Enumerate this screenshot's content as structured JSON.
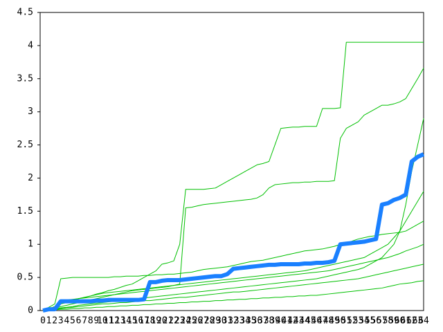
{
  "chart_data": {
    "type": "line",
    "categories": [
      "0",
      "1",
      "2",
      "3",
      "4",
      "5",
      "6",
      "7",
      "8",
      "9",
      "10",
      "11",
      "12",
      "13",
      "14",
      "15",
      "16",
      "17",
      "18",
      "19",
      "20",
      "21",
      "22",
      "23",
      "24",
      "25",
      "26",
      "27",
      "28",
      "29",
      "30",
      "31",
      "32",
      "33",
      "34",
      "35",
      "36",
      "37",
      "38",
      "39",
      "40",
      "41",
      "42",
      "43",
      "44",
      "45",
      "46",
      "47",
      "48",
      "49",
      "50",
      "51",
      "52",
      "53",
      "54",
      "55",
      "56",
      "57",
      "58",
      "59",
      "60",
      "61",
      "62",
      "63",
      "64"
    ],
    "ylim": [
      0,
      4.5
    ],
    "yticks": [
      0,
      0.5,
      1,
      1.5,
      2,
      2.5,
      3,
      3.5,
      4,
      4.5
    ],
    "grid": false,
    "series": [
      {
        "color": "#00c000",
        "width": 1,
        "values": [
          0,
          0.02,
          0.05,
          0.1,
          0.12,
          0.15,
          0.18,
          0.2,
          0.22,
          0.25,
          0.27,
          0.3,
          0.32,
          0.35,
          0.38,
          0.4,
          0.45,
          0.5,
          0.55,
          0.6,
          0.7,
          0.72,
          0.75,
          1.0,
          1.83,
          1.83,
          1.83,
          1.83,
          1.84,
          1.85,
          1.9,
          1.95,
          2.0,
          2.05,
          2.1,
          2.15,
          2.2,
          2.22,
          2.25,
          2.5,
          2.75,
          2.76,
          2.77,
          2.77,
          2.78,
          2.78,
          2.78,
          3.05,
          3.05,
          3.05,
          3.06,
          4.05,
          4.05,
          4.05,
          4.05,
          4.05,
          4.05,
          4.05,
          4.05,
          4.05,
          4.05,
          4.05,
          4.05,
          4.05,
          4.05
        ]
      },
      {
        "color": "#00c000",
        "width": 1,
        "values": [
          0,
          0.01,
          0.03,
          0.06,
          0.08,
          0.1,
          0.12,
          0.14,
          0.16,
          0.18,
          0.2,
          0.22,
          0.24,
          0.26,
          0.28,
          0.3,
          0.31,
          0.32,
          0.33,
          0.34,
          0.35,
          0.36,
          0.38,
          0.4,
          1.55,
          1.56,
          1.58,
          1.6,
          1.61,
          1.62,
          1.63,
          1.64,
          1.65,
          1.66,
          1.67,
          1.68,
          1.7,
          1.75,
          1.85,
          1.9,
          1.91,
          1.92,
          1.93,
          1.93,
          1.94,
          1.94,
          1.95,
          1.95,
          1.95,
          1.96,
          2.6,
          2.75,
          2.8,
          2.85,
          2.95,
          3.0,
          3.05,
          3.1,
          3.1,
          3.12,
          3.15,
          3.2,
          3.35,
          3.5,
          3.66
        ]
      },
      {
        "color": "#00c000",
        "width": 1,
        "values": [
          0,
          0.01,
          0.02,
          0.04,
          0.05,
          0.06,
          0.08,
          0.09,
          0.1,
          0.11,
          0.12,
          0.13,
          0.14,
          0.15,
          0.16,
          0.17,
          0.18,
          0.19,
          0.2,
          0.21,
          0.22,
          0.23,
          0.24,
          0.25,
          0.26,
          0.27,
          0.28,
          0.29,
          0.3,
          0.31,
          0.32,
          0.33,
          0.34,
          0.35,
          0.36,
          0.37,
          0.38,
          0.39,
          0.4,
          0.41,
          0.42,
          0.43,
          0.44,
          0.45,
          0.46,
          0.47,
          0.48,
          0.5,
          0.52,
          0.54,
          0.56,
          0.58,
          0.6,
          0.62,
          0.65,
          0.7,
          0.75,
          0.8,
          0.9,
          1.0,
          1.2,
          1.6,
          2.1,
          2.5,
          2.9
        ]
      },
      {
        "color": "#00c000",
        "width": 1,
        "values": [
          0,
          0.05,
          0.1,
          0.48,
          0.49,
          0.5,
          0.5,
          0.5,
          0.5,
          0.5,
          0.5,
          0.5,
          0.51,
          0.51,
          0.52,
          0.52,
          0.52,
          0.53,
          0.53,
          0.54,
          0.54,
          0.55,
          0.55,
          0.56,
          0.57,
          0.58,
          0.6,
          0.62,
          0.63,
          0.64,
          0.65,
          0.66,
          0.68,
          0.7,
          0.72,
          0.74,
          0.75,
          0.76,
          0.78,
          0.8,
          0.82,
          0.84,
          0.86,
          0.88,
          0.9,
          0.91,
          0.92,
          0.93,
          0.95,
          0.97,
          1.0,
          1.02,
          1.05,
          1.08,
          1.1,
          1.12,
          1.13,
          1.15,
          1.16,
          1.17,
          1.18,
          1.2,
          1.25,
          1.3,
          1.35
        ]
      },
      {
        "color": "#00c000",
        "width": 1,
        "values": [
          0,
          0.01,
          0.02,
          0.03,
          0.04,
          0.05,
          0.06,
          0.07,
          0.08,
          0.09,
          0.1,
          0.1,
          0.11,
          0.12,
          0.12,
          0.13,
          0.14,
          0.15,
          0.15,
          0.16,
          0.17,
          0.18,
          0.19,
          0.2,
          0.2,
          0.21,
          0.22,
          0.23,
          0.24,
          0.25,
          0.26,
          0.27,
          0.28,
          0.28,
          0.29,
          0.3,
          0.31,
          0.32,
          0.33,
          0.34,
          0.35,
          0.36,
          0.37,
          0.38,
          0.39,
          0.4,
          0.41,
          0.42,
          0.43,
          0.44,
          0.45,
          0.46,
          0.47,
          0.48,
          0.5,
          0.52,
          0.54,
          0.56,
          0.58,
          0.6,
          0.62,
          0.64,
          0.66,
          0.68,
          0.7
        ]
      },
      {
        "color": "#00c000",
        "width": 1,
        "values": [
          0,
          0.02,
          0.05,
          0.15,
          0.16,
          0.17,
          0.18,
          0.19,
          0.2,
          0.21,
          0.22,
          0.23,
          0.24,
          0.25,
          0.26,
          0.27,
          0.28,
          0.29,
          0.3,
          0.31,
          0.32,
          0.33,
          0.34,
          0.35,
          0.36,
          0.37,
          0.38,
          0.39,
          0.4,
          0.41,
          0.42,
          0.43,
          0.44,
          0.45,
          0.46,
          0.47,
          0.48,
          0.49,
          0.5,
          0.51,
          0.52,
          0.53,
          0.54,
          0.55,
          0.56,
          0.57,
          0.58,
          0.59,
          0.6,
          0.62,
          0.64,
          0.66,
          0.68,
          0.7,
          0.72,
          0.74,
          0.76,
          0.78,
          0.8,
          0.83,
          0.86,
          0.9,
          0.93,
          0.96,
          1.0
        ]
      },
      {
        "color": "#00c000",
        "width": 1,
        "values": [
          0,
          0,
          0.01,
          0.02,
          0.02,
          0.03,
          0.03,
          0.04,
          0.04,
          0.05,
          0.05,
          0.06,
          0.06,
          0.07,
          0.07,
          0.08,
          0.08,
          0.09,
          0.09,
          0.1,
          0.1,
          0.11,
          0.11,
          0.12,
          0.12,
          0.13,
          0.13,
          0.14,
          0.14,
          0.15,
          0.15,
          0.16,
          0.16,
          0.17,
          0.17,
          0.18,
          0.18,
          0.19,
          0.19,
          0.2,
          0.2,
          0.21,
          0.21,
          0.22,
          0.22,
          0.23,
          0.23,
          0.24,
          0.25,
          0.26,
          0.27,
          0.28,
          0.29,
          0.3,
          0.31,
          0.32,
          0.33,
          0.34,
          0.36,
          0.38,
          0.4,
          0.41,
          0.42,
          0.44,
          0.45
        ]
      },
      {
        "color": "#00c000",
        "width": 1,
        "values": [
          0,
          0.03,
          0.06,
          0.12,
          0.14,
          0.16,
          0.18,
          0.2,
          0.22,
          0.24,
          0.26,
          0.27,
          0.28,
          0.29,
          0.3,
          0.31,
          0.32,
          0.33,
          0.34,
          0.35,
          0.36,
          0.37,
          0.38,
          0.39,
          0.4,
          0.41,
          0.42,
          0.43,
          0.44,
          0.45,
          0.46,
          0.47,
          0.48,
          0.49,
          0.5,
          0.51,
          0.52,
          0.53,
          0.54,
          0.55,
          0.56,
          0.57,
          0.58,
          0.59,
          0.6,
          0.62,
          0.64,
          0.66,
          0.68,
          0.7,
          0.72,
          0.74,
          0.76,
          0.78,
          0.8,
          0.85,
          0.9,
          0.95,
          1.0,
          1.1,
          1.2,
          1.35,
          1.5,
          1.65,
          1.8
        ]
      },
      {
        "color": "#1a80ff",
        "width": 6,
        "values": [
          0,
          0.02,
          0.02,
          0.14,
          0.14,
          0.14,
          0.14,
          0.14,
          0.14,
          0.15,
          0.15,
          0.16,
          0.16,
          0.16,
          0.16,
          0.16,
          0.16,
          0.17,
          0.43,
          0.43,
          0.45,
          0.46,
          0.46,
          0.46,
          0.47,
          0.48,
          0.49,
          0.5,
          0.51,
          0.52,
          0.52,
          0.55,
          0.63,
          0.64,
          0.65,
          0.66,
          0.67,
          0.68,
          0.69,
          0.69,
          0.7,
          0.7,
          0.7,
          0.7,
          0.71,
          0.71,
          0.72,
          0.72,
          0.73,
          0.75,
          1.0,
          1.01,
          1.02,
          1.03,
          1.04,
          1.06,
          1.08,
          1.6,
          1.62,
          1.67,
          1.7,
          1.75,
          2.25,
          2.32,
          2.36
        ]
      }
    ]
  }
}
